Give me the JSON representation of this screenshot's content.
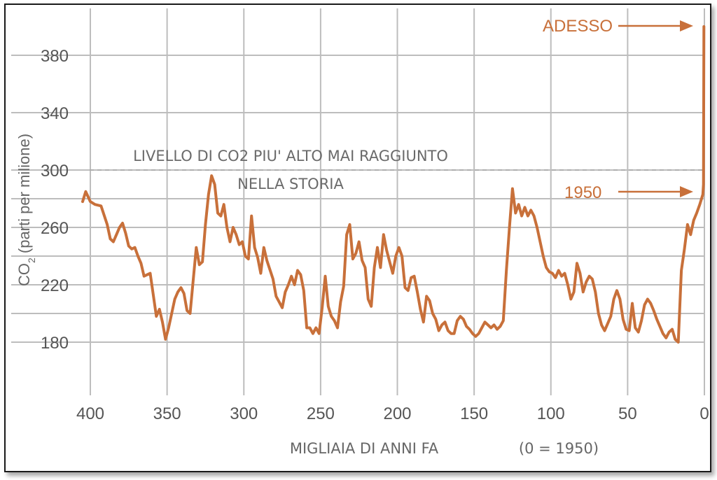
{
  "chart_data": {
    "type": "line",
    "title": "",
    "xlabel": "MIGLIAIA DI ANNI FA",
    "xlabel_note": "(0 = 1950)",
    "ylabel": "CO2 (parti per milione)",
    "ylabel_main": "CO",
    "ylabel_sub": "2",
    "ylabel_rest": " (parti per milione)",
    "x_reversed": true,
    "xlim": [
      405,
      0
    ],
    "ylim": [
      175,
      400
    ],
    "xticks": [
      400,
      350,
      300,
      250,
      200,
      150,
      100,
      50,
      0
    ],
    "yticks": [
      180,
      220,
      260,
      300,
      340,
      380
    ],
    "grid": true,
    "line_color": "#c8703a",
    "reference_line": {
      "value": 300,
      "label_line1": "LIVELLO DI CO2 PIU' ALTO MAI RAGGIUNTO",
      "label_line2": "NELLA STORIA"
    },
    "annotations": [
      {
        "text": "ADESSO",
        "x": 0,
        "y": 400
      },
      {
        "text": "1950",
        "x": 0,
        "y": 283
      }
    ],
    "series": [
      {
        "x": [
          405,
          403,
          400,
          397,
          393,
          389,
          387,
          385,
          383,
          381,
          379,
          377,
          375,
          373,
          371,
          369,
          367,
          365,
          361,
          359,
          357,
          355,
          353,
          351,
          349,
          347,
          345,
          343,
          341,
          339,
          337,
          335,
          331,
          329,
          327,
          325,
          323,
          321,
          319,
          317,
          315,
          313,
          311,
          309,
          307,
          305,
          303,
          301,
          299,
          297,
          295,
          293,
          291,
          289,
          287,
          285,
          281,
          279,
          277,
          275,
          273,
          271,
          269,
          267,
          265,
          263,
          261,
          259,
          257,
          255,
          253,
          251,
          249,
          247,
          245,
          243,
          241,
          239,
          237,
          235,
          233,
          231,
          229,
          227,
          225,
          223,
          221,
          219,
          217,
          215,
          213,
          211,
          209,
          207,
          205,
          203,
          201,
          199,
          197,
          195,
          193,
          191,
          189,
          187,
          185,
          183,
          181,
          179,
          177,
          175,
          173,
          171,
          169,
          167,
          165,
          163,
          161,
          159,
          157,
          155,
          153,
          151,
          149,
          147,
          145,
          143,
          141,
          139,
          137,
          135,
          133,
          131,
          129,
          127,
          125,
          123,
          121,
          119,
          117,
          115,
          113,
          111,
          109,
          107,
          105,
          103,
          101,
          99,
          97,
          95,
          93,
          91,
          89,
          87,
          85,
          83,
          81,
          79,
          77,
          75,
          73,
          71,
          69,
          67,
          65,
          63,
          61,
          59,
          57,
          55,
          53,
          51,
          49,
          47,
          45,
          43,
          41,
          39,
          37,
          35,
          33,
          31,
          29,
          27,
          25,
          23,
          21,
          19,
          17,
          15,
          13,
          11,
          9,
          7,
          5,
          3,
          1,
          0.6,
          0.3
        ],
        "y": [
          278,
          285,
          278,
          276,
          275,
          262,
          252,
          250,
          255,
          260,
          263,
          256,
          247,
          245,
          246,
          240,
          235,
          226,
          228,
          213,
          198,
          203,
          194,
          182,
          190,
          200,
          210,
          215,
          218,
          214,
          202,
          200,
          246,
          234,
          236,
          262,
          283,
          296,
          290,
          270,
          268,
          276,
          260,
          250,
          260,
          255,
          248,
          250,
          240,
          238,
          268,
          246,
          239,
          228,
          246,
          237,
          224,
          212,
          208,
          204,
          215,
          220,
          226,
          220,
          230,
          227,
          216,
          190,
          190,
          186,
          190,
          186,
          204,
          226,
          205,
          198,
          195,
          190,
          208,
          219,
          255,
          262,
          238,
          242,
          250,
          237,
          232,
          210,
          205,
          232,
          246,
          232,
          255,
          244,
          236,
          228,
          240,
          246,
          240,
          218,
          216,
          225,
          226,
          215,
          203,
          194,
          212,
          209,
          200,
          196,
          188,
          192,
          194,
          188,
          186,
          186,
          195,
          198,
          196,
          191,
          189,
          186,
          184,
          186,
          190,
          194,
          192,
          190,
          192,
          189,
          191,
          195,
          230,
          260,
          287,
          270,
          276,
          268,
          274,
          268,
          272,
          268,
          260,
          250,
          240,
          232,
          229,
          228,
          225,
          230,
          226,
          228,
          220,
          210,
          215,
          235,
          228,
          215,
          222,
          226,
          224,
          215,
          200,
          192,
          188,
          193,
          198,
          210,
          216,
          210,
          196,
          189,
          188,
          207,
          190,
          187,
          195,
          206,
          210,
          207,
          202,
          196,
          191,
          186,
          183,
          187,
          189,
          182,
          180,
          230,
          245,
          262,
          255,
          265,
          270,
          276,
          283,
          290,
          400
        ]
      }
    ]
  }
}
